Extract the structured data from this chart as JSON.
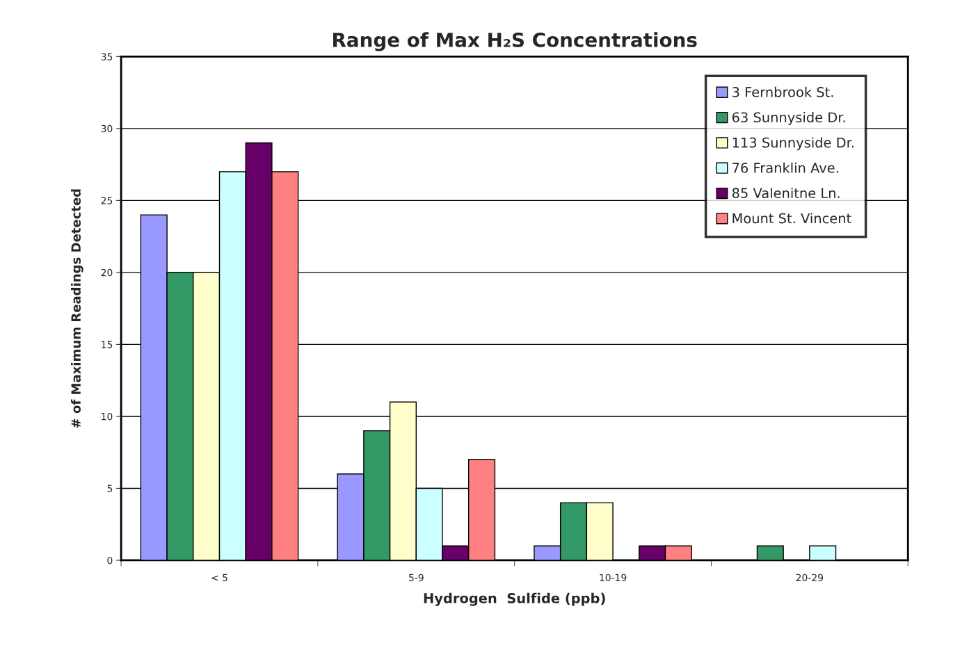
{
  "chart_data": {
    "type": "bar",
    "title": "Range of Max H₂S Concentrations",
    "xlabel": "Hydrogen  Sulfide (ppb)",
    "ylabel": "# of Maximum Readings Detected",
    "categories": [
      "< 5",
      "5-9",
      "10-19",
      "20-29"
    ],
    "series": [
      {
        "name": "3 Fernbrook St.",
        "color": "#9999ff",
        "values": [
          24,
          6,
          1,
          0
        ]
      },
      {
        "name": "63 Sunnyside Dr.",
        "color": "#339966",
        "values": [
          20,
          9,
          4,
          1
        ]
      },
      {
        "name": "113 Sunnyside Dr.",
        "color": "#ffffcc",
        "values": [
          20,
          11,
          4,
          0
        ]
      },
      {
        "name": "76 Franklin Ave.",
        "color": "#ccffff",
        "values": [
          27,
          5,
          0,
          1
        ]
      },
      {
        "name": "85 Valenitne Ln.",
        "color": "#660066",
        "values": [
          29,
          1,
          1,
          0
        ]
      },
      {
        "name": "Mount St. Vincent",
        "color": "#ff8080",
        "values": [
          27,
          7,
          1,
          0
        ]
      }
    ],
    "ylim": [
      0,
      35
    ],
    "yticks": [
      0,
      5,
      10,
      15,
      20,
      25,
      30,
      35
    ],
    "grid": "y",
    "legend": "top right"
  }
}
